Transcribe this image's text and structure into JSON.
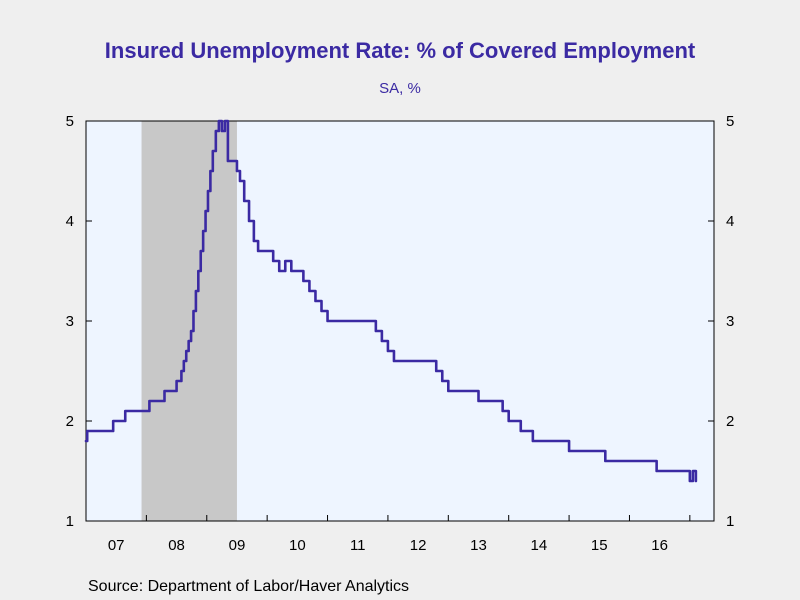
{
  "chart_data": {
    "type": "line",
    "title": "Insured Unemployment Rate: % of Covered Employment",
    "subtitle": "SA, %",
    "source": "Source:  Department of Labor/Haver Analytics",
    "xlabel": "",
    "ylabel": "",
    "x_ticks": [
      "07",
      "08",
      "09",
      "10",
      "11",
      "12",
      "13",
      "14",
      "15",
      "16"
    ],
    "y_ticks": [
      1,
      2,
      3,
      4,
      5
    ],
    "ylim": [
      1,
      5
    ],
    "xlim": [
      2007.0,
      2017.4
    ],
    "grid": false,
    "recession_shading": {
      "start": 2007.92,
      "end": 2009.5,
      "color": "#c8c8c8"
    },
    "colors": {
      "plot_bg": "#eef5ff",
      "line": "#3b2aa3",
      "title": "#3b2aa3"
    },
    "series": [
      {
        "points": [
          [
            2007.0,
            1.8
          ],
          [
            2007.02,
            1.9
          ],
          [
            2007.1,
            1.9
          ],
          [
            2007.35,
            1.9
          ],
          [
            2007.45,
            2.0
          ],
          [
            2007.6,
            2.0
          ],
          [
            2007.65,
            2.1
          ],
          [
            2007.85,
            2.1
          ],
          [
            2008.0,
            2.1
          ],
          [
            2008.05,
            2.2
          ],
          [
            2008.25,
            2.2
          ],
          [
            2008.3,
            2.3
          ],
          [
            2008.45,
            2.3
          ],
          [
            2008.5,
            2.4
          ],
          [
            2008.58,
            2.5
          ],
          [
            2008.62,
            2.6
          ],
          [
            2008.66,
            2.7
          ],
          [
            2008.7,
            2.8
          ],
          [
            2008.74,
            2.9
          ],
          [
            2008.78,
            3.1
          ],
          [
            2008.82,
            3.3
          ],
          [
            2008.86,
            3.5
          ],
          [
            2008.9,
            3.7
          ],
          [
            2008.94,
            3.9
          ],
          [
            2008.98,
            4.1
          ],
          [
            2009.02,
            4.3
          ],
          [
            2009.06,
            4.5
          ],
          [
            2009.1,
            4.7
          ],
          [
            2009.15,
            4.9
          ],
          [
            2009.2,
            5.0
          ],
          [
            2009.25,
            4.9
          ],
          [
            2009.3,
            5.0
          ],
          [
            2009.35,
            4.6
          ],
          [
            2009.45,
            4.6
          ],
          [
            2009.5,
            4.5
          ],
          [
            2009.55,
            4.4
          ],
          [
            2009.62,
            4.2
          ],
          [
            2009.7,
            4.0
          ],
          [
            2009.78,
            3.8
          ],
          [
            2009.85,
            3.7
          ],
          [
            2010.0,
            3.7
          ],
          [
            2010.1,
            3.6
          ],
          [
            2010.2,
            3.5
          ],
          [
            2010.3,
            3.6
          ],
          [
            2010.4,
            3.5
          ],
          [
            2010.5,
            3.5
          ],
          [
            2010.6,
            3.4
          ],
          [
            2010.7,
            3.3
          ],
          [
            2010.8,
            3.2
          ],
          [
            2010.9,
            3.1
          ],
          [
            2011.0,
            3.0
          ],
          [
            2011.3,
            3.0
          ],
          [
            2011.6,
            3.0
          ],
          [
            2011.8,
            2.9
          ],
          [
            2011.9,
            2.8
          ],
          [
            2012.0,
            2.7
          ],
          [
            2012.1,
            2.6
          ],
          [
            2012.4,
            2.6
          ],
          [
            2012.7,
            2.6
          ],
          [
            2012.8,
            2.5
          ],
          [
            2012.9,
            2.4
          ],
          [
            2013.0,
            2.3
          ],
          [
            2013.2,
            2.3
          ],
          [
            2013.4,
            2.3
          ],
          [
            2013.5,
            2.2
          ],
          [
            2013.8,
            2.2
          ],
          [
            2013.9,
            2.1
          ],
          [
            2014.0,
            2.0
          ],
          [
            2014.2,
            1.9
          ],
          [
            2014.4,
            1.8
          ],
          [
            2014.6,
            1.8
          ],
          [
            2014.8,
            1.8
          ],
          [
            2015.0,
            1.7
          ],
          [
            2015.3,
            1.7
          ],
          [
            2015.6,
            1.6
          ],
          [
            2015.8,
            1.6
          ],
          [
            2016.0,
            1.6
          ],
          [
            2016.3,
            1.6
          ],
          [
            2016.45,
            1.5
          ],
          [
            2016.8,
            1.5
          ],
          [
            2016.9,
            1.5
          ],
          [
            2017.0,
            1.4
          ],
          [
            2017.05,
            1.5
          ],
          [
            2017.1,
            1.4
          ]
        ]
      }
    ]
  }
}
